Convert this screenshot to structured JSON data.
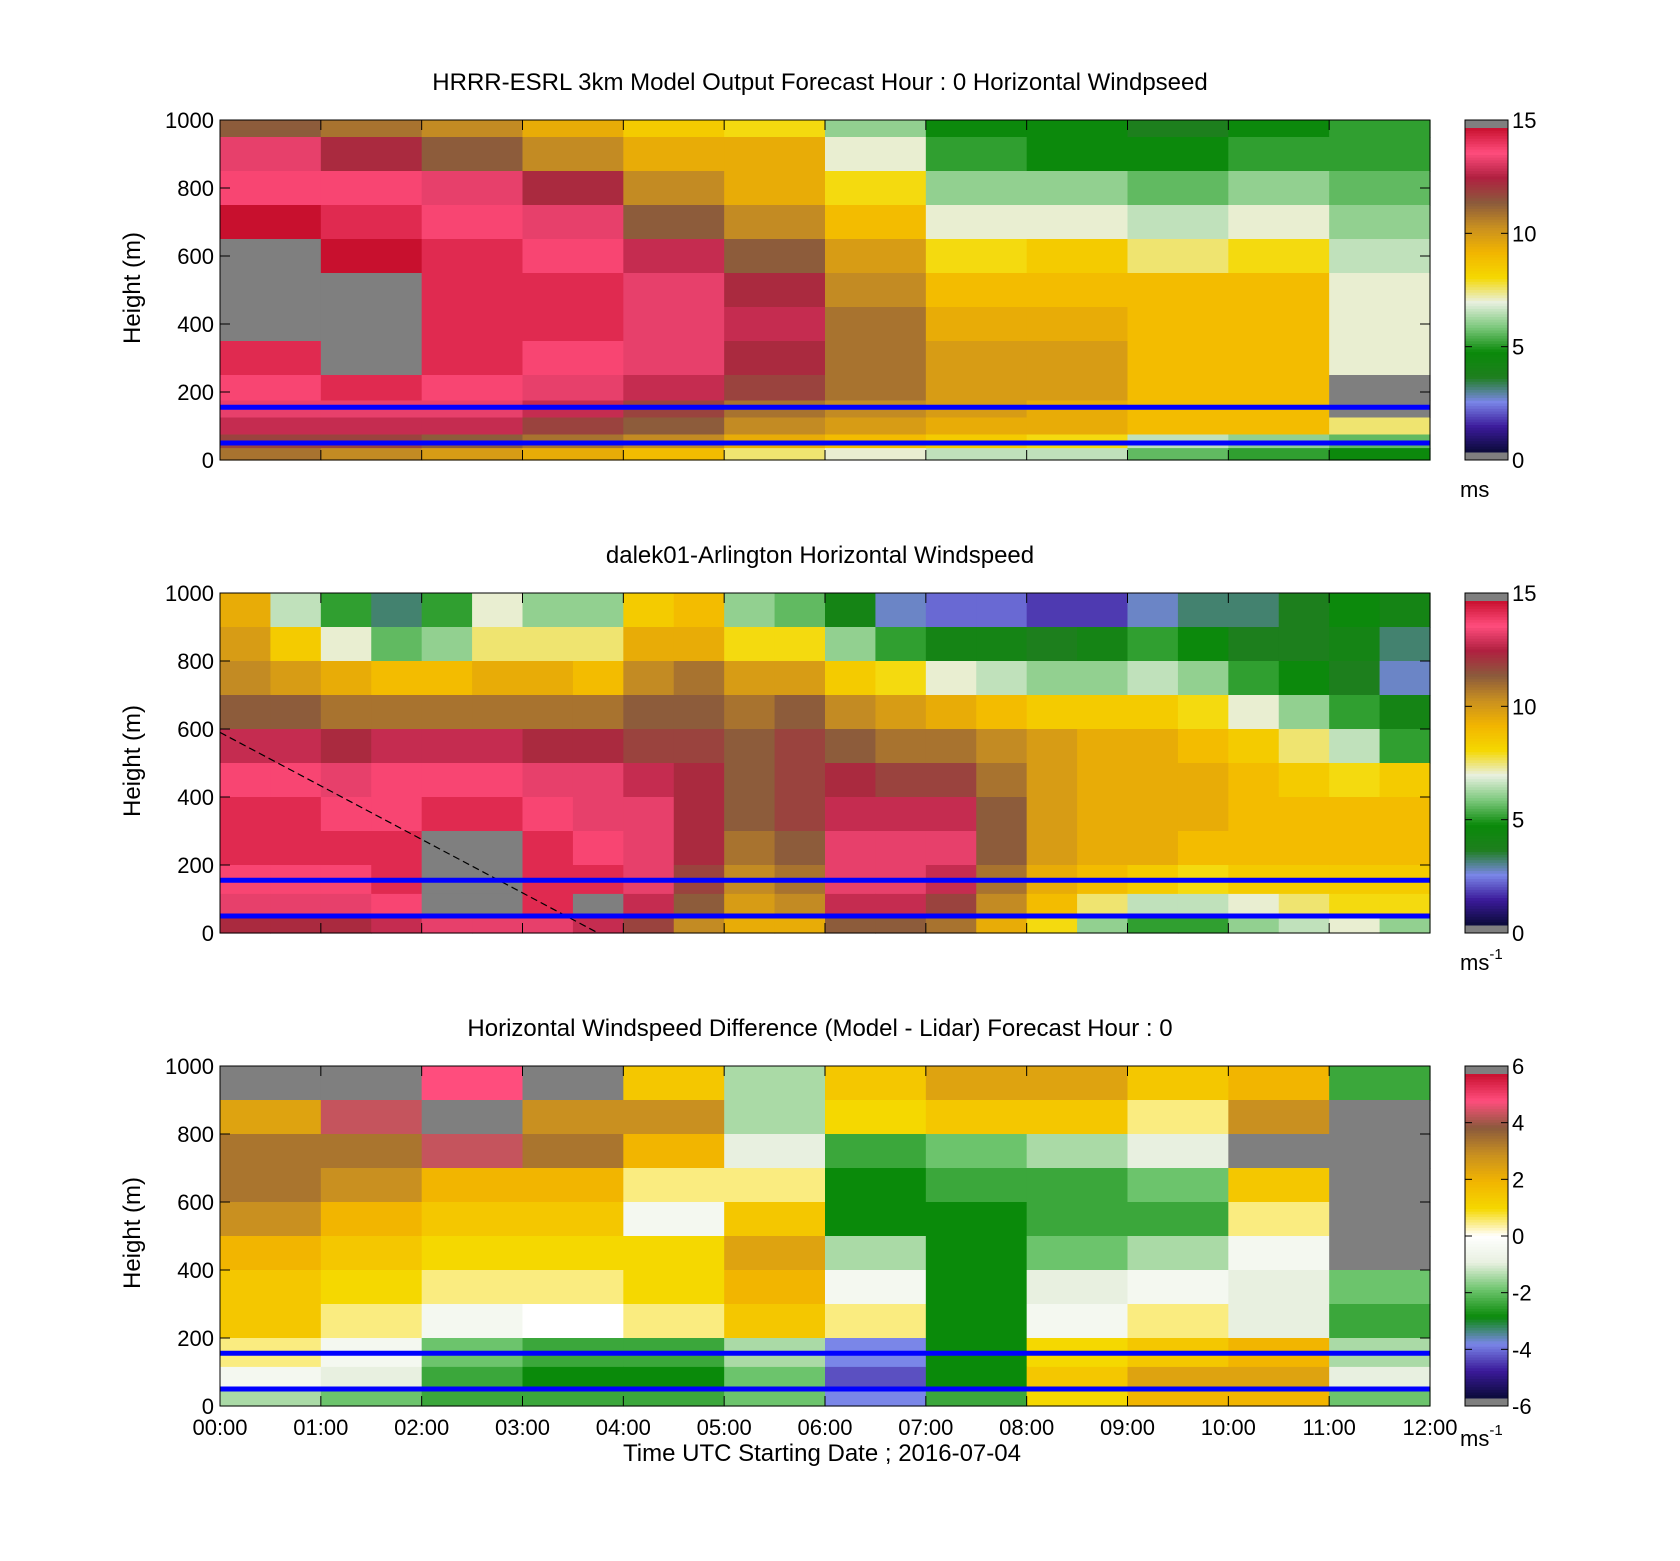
{
  "figure": {
    "xlabel": "Time UTC  Starting Date ; 2016-07-04",
    "x_ticks": [
      "00:00",
      "01:00",
      "02:00",
      "03:00",
      "04:00",
      "05:00",
      "06:00",
      "07:00",
      "08:00",
      "09:00",
      "10:00",
      "11:00",
      "12:00"
    ]
  },
  "colors": {
    "missing": "#7f7f7f",
    "highlight_lines": "#0000ff",
    "speed_colormap": [
      "#0b0b3a",
      "#3b1a9a",
      "#7a86e8",
      "#1e7f1e",
      "#0a8a0a",
      "#7cc87c",
      "#e8f0e0",
      "#f5d800",
      "#f2b500",
      "#c99020",
      "#8b5a3c",
      "#b02040",
      "#ff4d7d",
      "#c8102e"
    ],
    "diff_colormap": [
      "#0b0b3a",
      "#3b1a9a",
      "#7a86e8",
      "#0a8a0a",
      "#6cc46c",
      "#e8f0e0",
      "#ffffff",
      "#f5d800",
      "#f2b500",
      "#c99020",
      "#8b5a3c",
      "#ff4d7d",
      "#c8102e"
    ]
  },
  "chart_data": [
    {
      "type": "heatmap",
      "title": "HRRR-ESRL 3km Model Output   Forecast Hour : 0 Horizontal Windpseed",
      "xlabel": "",
      "ylabel": "Height (m)",
      "y_ticks": [
        "0",
        "200",
        "400",
        "600",
        "800",
        "1000"
      ],
      "xlim": [
        0,
        12
      ],
      "ylim": [
        0,
        1000
      ],
      "colorbar": {
        "ticks": [
          "0",
          "5",
          "10",
          "15"
        ],
        "range": [
          0,
          15
        ],
        "unit": "ms",
        "unit_sup": ""
      },
      "highlight_heights": [
        155,
        50
      ],
      "x_hours": [
        0,
        1,
        2,
        3,
        4,
        5,
        6,
        7,
        8,
        9,
        10,
        11
      ],
      "y_heights": [
        1000,
        900,
        800,
        700,
        600,
        500,
        400,
        300,
        200,
        150,
        100,
        50,
        20
      ],
      "values": [
        [
          11.5,
          11.0,
          10.5,
          9.5,
          8.5,
          8.0,
          6.0,
          4.5,
          4.5,
          3.5,
          4.5,
          5.0
        ],
        [
          13.5,
          12.5,
          11.5,
          10.5,
          9.5,
          9.5,
          7.0,
          5.0,
          4.5,
          4.5,
          5.0,
          5.0
        ],
        [
          14.0,
          14.0,
          13.5,
          12.5,
          10.5,
          9.5,
          8.0,
          6.0,
          6.0,
          5.5,
          6.0,
          5.5
        ],
        [
          15.0,
          14.5,
          14.0,
          13.5,
          11.5,
          10.5,
          9.0,
          7.0,
          7.0,
          6.5,
          7.0,
          6.0
        ],
        [
          null,
          15.0,
          14.5,
          14.0,
          13.0,
          11.5,
          10.0,
          8.0,
          8.5,
          7.5,
          8.0,
          6.5
        ],
        [
          null,
          null,
          14.5,
          14.5,
          13.5,
          12.5,
          10.5,
          9.0,
          9.0,
          9.0,
          9.0,
          7.0
        ],
        [
          null,
          null,
          14.5,
          14.5,
          13.5,
          13.0,
          11.0,
          9.5,
          9.5,
          9.0,
          9.0,
          7.0
        ],
        [
          14.5,
          null,
          14.5,
          14.0,
          13.5,
          12.5,
          11.0,
          10.0,
          10.0,
          9.0,
          9.0,
          7.0
        ],
        [
          14.0,
          14.5,
          14.0,
          13.5,
          13.0,
          12.0,
          11.0,
          10.0,
          10.0,
          9.0,
          9.0,
          null
        ],
        [
          13.5,
          13.5,
          13.5,
          13.0,
          12.0,
          11.0,
          10.5,
          10.0,
          9.5,
          9.0,
          9.0,
          null
        ],
        [
          13.0,
          13.0,
          13.0,
          12.0,
          11.5,
          10.5,
          10.0,
          9.5,
          9.5,
          9.0,
          9.0,
          7.5
        ],
        [
          12.0,
          12.0,
          11.5,
          11.0,
          10.5,
          9.5,
          9.0,
          8.5,
          8.0,
          6.5,
          6.0,
          5.5
        ],
        [
          11.0,
          10.5,
          10.0,
          9.5,
          9.0,
          7.5,
          7.0,
          6.5,
          6.5,
          5.5,
          5.0,
          4.5
        ]
      ]
    },
    {
      "type": "heatmap",
      "title": "dalek01-Arlington  Horizontal Windspeed",
      "xlabel": "",
      "ylabel": "Height (m)",
      "y_ticks": [
        "0",
        "200",
        "400",
        "600",
        "800",
        "1000"
      ],
      "xlim": [
        0,
        12
      ],
      "ylim": [
        0,
        1000
      ],
      "colorbar": {
        "ticks": [
          "0",
          "5",
          "10",
          "15"
        ],
        "range": [
          0,
          15
        ],
        "unit": "ms",
        "unit_sup": "-1"
      },
      "highlight_heights": [
        155,
        50
      ],
      "dashed_line": {
        "x": [
          0.0,
          3.75
        ],
        "y": [
          590,
          0
        ]
      },
      "x_hours": [
        0,
        0.5,
        1,
        1.5,
        2,
        2.5,
        3,
        3.5,
        4,
        4.5,
        5,
        5.5,
        6,
        6.5,
        7,
        7.5,
        8,
        8.5,
        9,
        9.5,
        10,
        10.5,
        11,
        11.5
      ],
      "y_heights": [
        950,
        850,
        750,
        650,
        550,
        450,
        350,
        250,
        150,
        80,
        30
      ],
      "values": [
        [
          9.5,
          6.5,
          5.0,
          3.0,
          5.0,
          7.0,
          6.0,
          6.0,
          8.5,
          9.0,
          6.0,
          5.5,
          4.0,
          2.5,
          2.0,
          2.0,
          1.5,
          1.5,
          2.5,
          3.0,
          3.0,
          3.5,
          4.5,
          4.0
        ],
        [
          10.0,
          8.5,
          7.0,
          5.5,
          6.0,
          7.5,
          7.5,
          7.5,
          9.5,
          9.5,
          8.0,
          8.0,
          6.0,
          5.0,
          4.0,
          4.0,
          3.5,
          4.0,
          5.0,
          4.5,
          3.5,
          3.5,
          4.0,
          3.0
        ],
        [
          10.5,
          10.0,
          9.5,
          9.0,
          9.0,
          9.5,
          9.5,
          9.0,
          10.5,
          11.0,
          10.0,
          10.0,
          8.5,
          8.0,
          7.0,
          6.5,
          6.0,
          6.0,
          6.5,
          6.0,
          5.0,
          4.5,
          3.5,
          2.5
        ],
        [
          11.5,
          11.5,
          11.0,
          11.0,
          11.0,
          11.0,
          11.0,
          11.0,
          11.5,
          11.5,
          11.0,
          11.5,
          10.5,
          10.0,
          9.5,
          9.0,
          8.5,
          8.5,
          8.5,
          8.0,
          7.0,
          6.0,
          5.0,
          4.0
        ],
        [
          13.0,
          13.0,
          12.5,
          13.0,
          13.0,
          13.0,
          12.5,
          12.5,
          12.0,
          12.0,
          11.5,
          12.0,
          11.5,
          11.0,
          11.0,
          10.5,
          10.0,
          9.5,
          9.5,
          9.0,
          8.5,
          7.5,
          6.5,
          5.0
        ],
        [
          14.0,
          14.0,
          13.5,
          14.0,
          14.0,
          14.0,
          13.5,
          13.5,
          13.0,
          12.5,
          11.5,
          12.0,
          12.5,
          12.0,
          12.0,
          11.0,
          10.0,
          9.5,
          9.5,
          9.5,
          9.0,
          8.5,
          8.0,
          8.5
        ],
        [
          14.5,
          14.5,
          14.0,
          14.0,
          14.5,
          14.5,
          14.0,
          13.5,
          13.5,
          12.5,
          11.5,
          12.0,
          13.0,
          13.0,
          13.0,
          11.5,
          10.0,
          9.5,
          9.5,
          9.5,
          9.0,
          9.0,
          9.0,
          9.0
        ],
        [
          14.5,
          14.5,
          14.5,
          14.5,
          null,
          null,
          14.5,
          14.0,
          13.5,
          12.5,
          11.0,
          11.5,
          13.5,
          13.5,
          13.5,
          11.5,
          10.0,
          9.5,
          9.5,
          9.0,
          9.0,
          9.0,
          9.0,
          9.0
        ],
        [
          14.0,
          14.0,
          14.0,
          14.5,
          null,
          null,
          14.5,
          14.5,
          13.5,
          12.0,
          10.5,
          11.0,
          13.5,
          13.5,
          13.0,
          11.0,
          9.5,
          9.0,
          8.5,
          8.0,
          8.5,
          8.5,
          8.5,
          8.5
        ],
        [
          13.5,
          13.5,
          13.5,
          14.0,
          null,
          null,
          14.5,
          null,
          13.0,
          11.5,
          10.0,
          10.5,
          13.0,
          13.0,
          12.0,
          10.5,
          9.0,
          7.5,
          6.5,
          6.5,
          7.0,
          7.5,
          8.0,
          8.0
        ],
        [
          12.5,
          12.5,
          12.5,
          13.0,
          13.5,
          13.5,
          13.5,
          13.0,
          12.0,
          10.5,
          9.5,
          9.5,
          11.5,
          11.5,
          11.0,
          9.5,
          8.0,
          6.0,
          5.0,
          5.0,
          6.0,
          6.5,
          7.0,
          6.0
        ]
      ]
    },
    {
      "type": "heatmap",
      "title": "Horizontal Windspeed Difference (Model - Lidar) Forecast Hour : 0",
      "xlabel": "Time UTC  Starting Date ; 2016-07-04",
      "ylabel": "Height (m)",
      "y_ticks": [
        "0",
        "200",
        "400",
        "600",
        "800",
        "1000"
      ],
      "xlim": [
        0,
        12
      ],
      "ylim": [
        0,
        1000
      ],
      "colorbar": {
        "ticks": [
          "-6",
          "-4",
          "-2",
          "0",
          "2",
          "4",
          "6"
        ],
        "range": [
          -6,
          6
        ],
        "unit": "ms",
        "unit_sup": "-1"
      },
      "highlight_heights": [
        155,
        50
      ],
      "x_hours": [
        0,
        1,
        2,
        3,
        4,
        5,
        6,
        7,
        8,
        9,
        10,
        11
      ],
      "y_heights": [
        950,
        850,
        750,
        650,
        550,
        450,
        350,
        250,
        150,
        80,
        30
      ],
      "values": [
        [
          null,
          null,
          5.0,
          null,
          1.5,
          -1.5,
          1.5,
          2.5,
          2.5,
          1.5,
          2.0,
          -2.5
        ],
        [
          2.5,
          4.5,
          null,
          3.0,
          3.0,
          -1.5,
          1.0,
          1.5,
          1.5,
          0.5,
          3.0,
          null
        ],
        [
          3.5,
          3.5,
          4.5,
          3.5,
          2.0,
          -1.0,
          -2.5,
          -2.0,
          -1.5,
          -1.0,
          null,
          null
        ],
        [
          3.5,
          3.0,
          2.0,
          2.0,
          0.5,
          0.5,
          -3.0,
          -2.5,
          -2.5,
          -2.0,
          1.5,
          null
        ],
        [
          3.0,
          2.0,
          1.5,
          1.5,
          -0.5,
          1.5,
          -3.0,
          -3.0,
          -2.5,
          -2.5,
          0.5,
          null
        ],
        [
          2.0,
          1.5,
          1.0,
          1.0,
          1.0,
          2.5,
          -1.5,
          -3.0,
          -2.0,
          -1.5,
          -0.5,
          null
        ],
        [
          1.5,
          1.0,
          0.5,
          0.5,
          1.0,
          2.0,
          -0.5,
          -3.0,
          -1.0,
          -0.5,
          -1.0,
          -2.0
        ],
        [
          1.5,
          0.5,
          -0.5,
          0.0,
          0.5,
          1.5,
          0.5,
          -3.0,
          -0.5,
          0.5,
          -1.0,
          -2.5
        ],
        [
          0.5,
          -0.5,
          -2.0,
          -2.5,
          -2.5,
          -1.5,
          -4.0,
          -3.0,
          1.0,
          1.5,
          2.0,
          -1.5
        ],
        [
          -0.5,
          -1.0,
          -2.5,
          -3.0,
          -3.0,
          -2.0,
          -4.5,
          -3.0,
          1.5,
          2.5,
          2.5,
          -1.0
        ],
        [
          -1.5,
          -2.0,
          -2.5,
          -2.5,
          -2.5,
          -2.0,
          -4.0,
          -2.5,
          1.0,
          2.0,
          2.0,
          -2.0
        ]
      ]
    }
  ]
}
